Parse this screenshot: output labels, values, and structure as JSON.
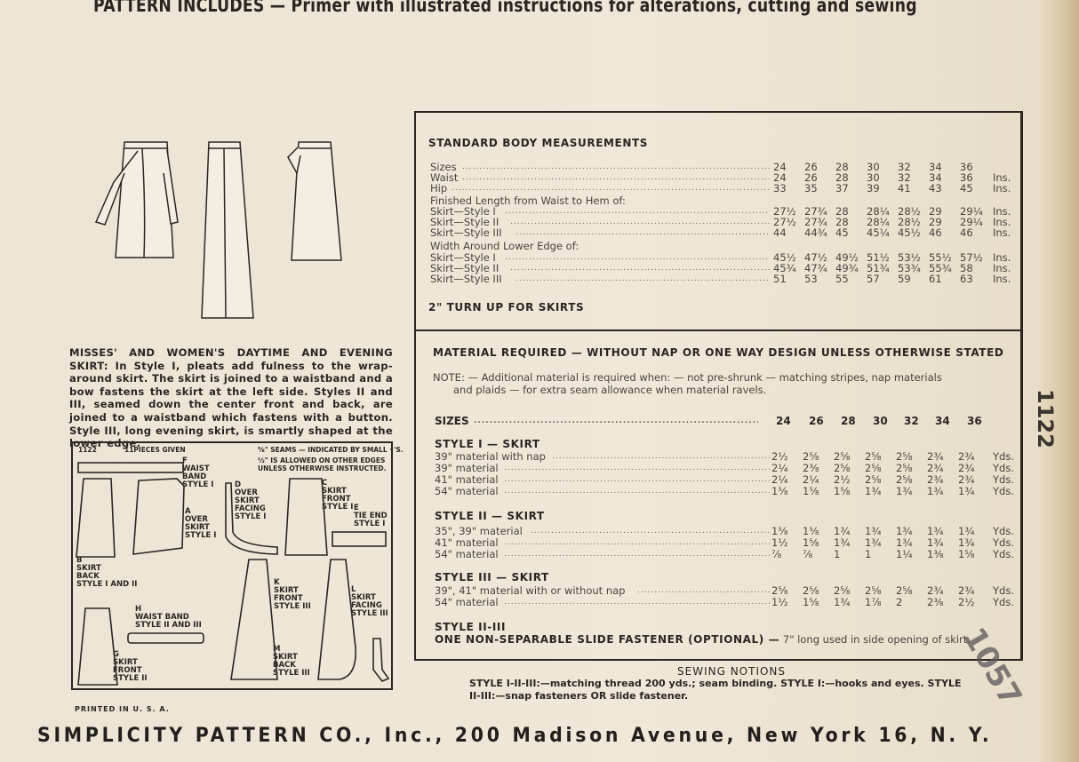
{
  "top_line": "PATTERN INCLUDES — Primer with illustrated instructions for alterations, cutting and sewing",
  "description": "MISSES' AND WOMEN'S DAYTIME AND EVENING SKIRT: In Style I, pleats add fulness to the wrap-around skirt. The skirt is joined to a waistband and a bow fastens the skirt at the left side. Styles II and III, seamed down the center front and back, are joined to a waistband which fastens with a button. Style III, long evening skirt, is smartly shaped at the lower edge.",
  "pieces": {
    "number": "1122",
    "count": "11PIECES GIVEN",
    "seams_note_1": "⅝\" SEAMS — INDICATED BY SMALL •'S.",
    "seams_note_2": "½\" IS ALLOWED ON OTHER EDGES",
    "seams_note_3": "UNLESS OTHERWISE INSTRUCTED.",
    "labels": {
      "F": "F\nWAIST\nBAND\nSTYLE I",
      "A": "A\nOVER\nSKIRT\nSTYLE I",
      "B": "B\nSKIRT\nBACK\nSTYLE I AND II",
      "D": "D\nOVER\nSKIRT\nFACING\nSTYLE I",
      "C": "C\nSKIRT\nFRONT\nSTYLE I",
      "E": "E\nTIE END\nSTYLE I",
      "H": "H\nWAIST BAND\nSTYLE II AND III",
      "G": "G\nSKIRT\nFRONT\nSTYLE II",
      "K": "K\nSKIRT\nFRONT\nSTYLE III",
      "L": "L\nSKIRT\nFACING\nSTYLE III",
      "M": "M\nSKIRT\nBACK\nSTYLE III"
    }
  },
  "printed": "PRINTED IN U. S. A.",
  "measurements": {
    "title": "STANDARD BODY MEASUREMENTS",
    "rows": [
      {
        "label": "Sizes",
        "values": [
          "24",
          "26",
          "28",
          "30",
          "32",
          "34",
          "36"
        ],
        "unit": ""
      },
      {
        "label": "Waist",
        "values": [
          "24",
          "26",
          "28",
          "30",
          "32",
          "34",
          "36"
        ],
        "unit": "Ins."
      },
      {
        "label": "Hip",
        "values": [
          "33",
          "35",
          "37",
          "39",
          "41",
          "43",
          "45"
        ],
        "unit": "Ins."
      },
      {
        "label": "Finished Length from Waist to Hem of:",
        "values": [],
        "unit": "",
        "heading": true
      },
      {
        "label": "Skirt—Style I",
        "values": [
          "27½",
          "27¾",
          "28",
          "28¼",
          "28½",
          "29",
          "29¼"
        ],
        "unit": "Ins."
      },
      {
        "label": "Skirt—Style II",
        "values": [
          "27½",
          "27¾",
          "28",
          "28¼",
          "28½",
          "29",
          "29¼"
        ],
        "unit": "Ins."
      },
      {
        "label": "Skirt—Style III",
        "values": [
          "44",
          "44¾",
          "45",
          "45¼",
          "45½",
          "46",
          "46"
        ],
        "unit": "Ins."
      },
      {
        "label": "Width Around Lower Edge of:",
        "values": [],
        "unit": "",
        "heading": true
      },
      {
        "label": "Skirt—Style I",
        "values": [
          "45½",
          "47½",
          "49½",
          "51½",
          "53½",
          "55½",
          "57½"
        ],
        "unit": "Ins."
      },
      {
        "label": "Skirt—Style II",
        "values": [
          "45¾",
          "47¾",
          "49¾",
          "51¾",
          "53¾",
          "55¾",
          "58"
        ],
        "unit": "Ins."
      },
      {
        "label": "Skirt—Style III",
        "values": [
          "51",
          "53",
          "55",
          "57",
          "59",
          "61",
          "63"
        ],
        "unit": "Ins."
      }
    ],
    "turn_up": "2\" TURN UP FOR SKIRTS"
  },
  "material": {
    "title": "MATERIAL REQUIRED — WITHOUT NAP OR ONE WAY DESIGN UNLESS OTHERWISE STATED",
    "note_1": "NOTE: — Additional material is required when: — not pre-shrunk — matching stripes, nap materials",
    "note_2": "and plaids — for extra seam allowance when material ravels.",
    "sizes_label": "SIZES",
    "sizes": [
      "24",
      "26",
      "28",
      "30",
      "32",
      "34",
      "36"
    ],
    "styles": [
      {
        "title": "STYLE I — SKIRT",
        "rows": [
          {
            "label": "39\" material with nap",
            "values": [
              "2½",
              "2⅝",
              "2⅝",
              "2⅝",
              "2⅝",
              "2¾",
              "2¾"
            ],
            "unit": "Yds."
          },
          {
            "label": "39\" material",
            "values": [
              "2¼",
              "2⅜",
              "2⅝",
              "2⅝",
              "2⅝",
              "2¾",
              "2¾"
            ],
            "unit": "Yds."
          },
          {
            "label": "41\" material",
            "values": [
              "2¼",
              "2¼",
              "2½",
              "2⅝",
              "2⅝",
              "2¾",
              "2¾"
            ],
            "unit": "Yds."
          },
          {
            "label": "54\" material",
            "values": [
              "1⅝",
              "1⅝",
              "1⅝",
              "1¾",
              "1¾",
              "1¾",
              "1¾"
            ],
            "unit": "Yds."
          }
        ]
      },
      {
        "title": "STYLE II — SKIRT",
        "rows": [
          {
            "label": "35\", 39\" material",
            "values": [
              "1⅝",
              "1⅝",
              "1¾",
              "1¾",
              "1¾",
              "1¾",
              "1¾"
            ],
            "unit": "Yds."
          },
          {
            "label": "41\" material",
            "values": [
              "1½",
              "1⅝",
              "1¾",
              "1¾",
              "1¾",
              "1¾",
              "1¾"
            ],
            "unit": "Yds."
          },
          {
            "label": "54\" material",
            "values": [
              "⅞",
              "⅞",
              "1",
              "1",
              "1¼",
              "1⅜",
              "1⅝"
            ],
            "unit": "Yds."
          }
        ]
      },
      {
        "title": "STYLE III — SKIRT",
        "rows": [
          {
            "label": "39\", 41\" material with or without nap",
            "values": [
              "2⅝",
              "2⅝",
              "2⅝",
              "2⅝",
              "2⅝",
              "2¾",
              "2¾"
            ],
            "unit": "Yds."
          },
          {
            "label": "54\" material",
            "values": [
              "1½",
              "1⅝",
              "1¾",
              "1⅞",
              "2",
              "2⅜",
              "2½"
            ],
            "unit": "Yds."
          }
        ]
      }
    ],
    "fastener_title": "STYLE II-III",
    "fastener_bold": "ONE NON-SEPARABLE SLIDE FASTENER (OPTIONAL) —",
    "fastener_text": "7\" long used in side opening of skirt."
  },
  "notions": {
    "title": "SEWING NOTIONS",
    "line_1": "STYLE I-II-III:—matching thread 200 yds.; seam binding. STYLE I:—hooks and eyes. STYLE",
    "line_2": "II-III:—snap fasteners OR slide fastener."
  },
  "side_number": "1122",
  "stamp": "1057",
  "footer": "SIMPLICITY PATTERN CO., Inc., 200 Madison Avenue, New York 16, N. Y."
}
